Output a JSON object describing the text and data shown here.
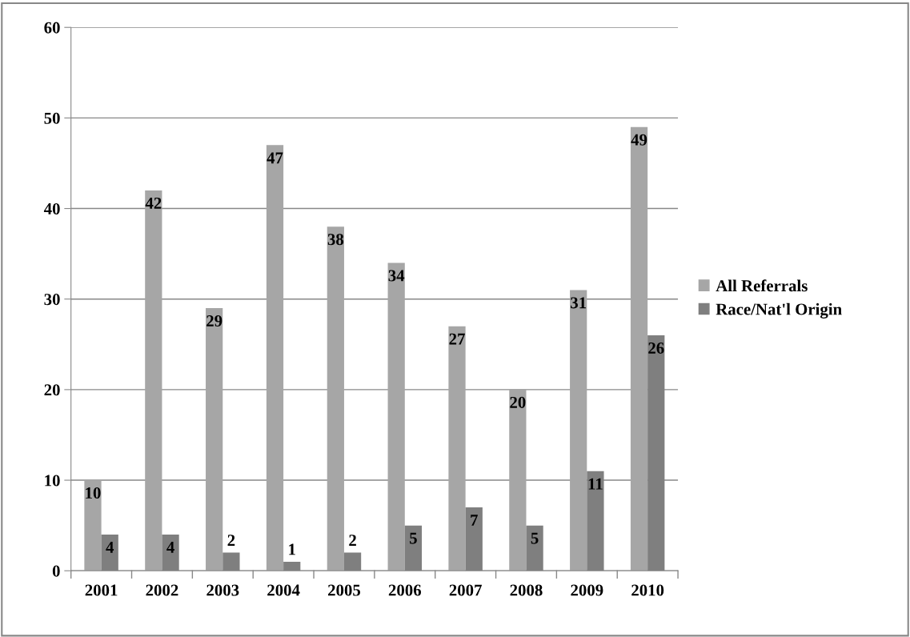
{
  "chart_data": {
    "type": "bar",
    "categories": [
      "2001",
      "2002",
      "2003",
      "2004",
      "2005",
      "2006",
      "2007",
      "2008",
      "2009",
      "2010"
    ],
    "series": [
      {
        "name": "All Referrals",
        "color": "#a6a6a6",
        "values": [
          10,
          42,
          29,
          47,
          38,
          34,
          27,
          20,
          31,
          49
        ]
      },
      {
        "name": "Race/Nat'l Origin",
        "color": "#7f7f7f",
        "values": [
          4,
          4,
          2,
          1,
          2,
          5,
          7,
          5,
          11,
          26
        ]
      }
    ],
    "ylim": [
      0,
      60
    ],
    "yticks": [
      0,
      10,
      20,
      30,
      40,
      50,
      60
    ],
    "grid": "y",
    "legend": "right",
    "data_labels": true
  }
}
